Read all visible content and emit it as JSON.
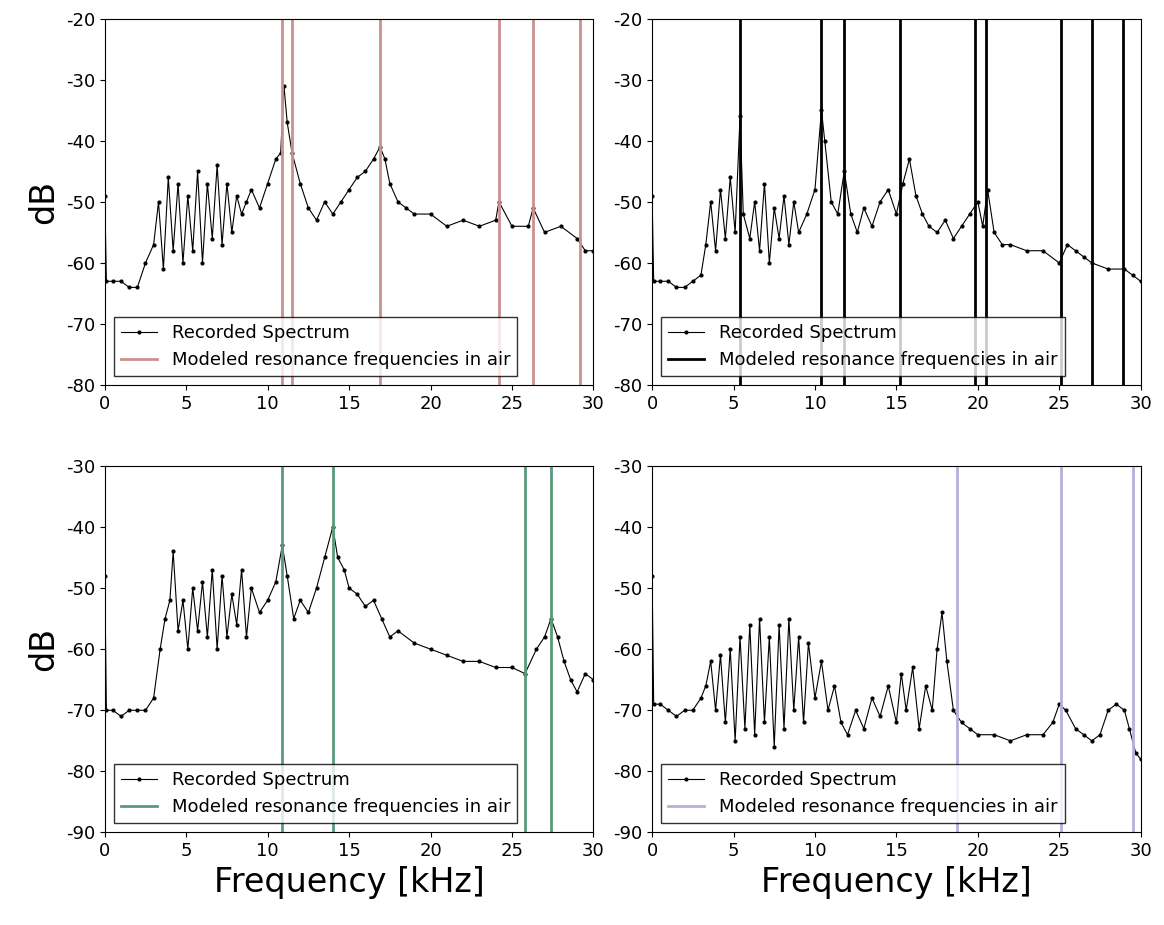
{
  "chart_data": [
    {
      "type": "line",
      "xlim": [
        0,
        30
      ],
      "xticks": [
        0,
        5,
        10,
        15,
        20,
        25,
        30
      ],
      "ylim": [
        -80,
        -20
      ],
      "yticks": [
        -80,
        -70,
        -60,
        -50,
        -40,
        -30,
        -20
      ],
      "y_label": "dB",
      "legend": "lower left",
      "series": [
        {
          "name": "Recorded Spectrum",
          "color": "#000000",
          "marker": "point",
          "line_style": "solid",
          "x": [
            0,
            0.1,
            0.5,
            1,
            1.5,
            2,
            2.5,
            3,
            3.3,
            3.6,
            3.9,
            4.2,
            4.5,
            4.8,
            5.1,
            5.4,
            5.7,
            6,
            6.3,
            6.6,
            6.9,
            7.2,
            7.5,
            7.8,
            8.1,
            8.4,
            8.7,
            9,
            9.5,
            10,
            10.5,
            10.8,
            11,
            11.2,
            11.5,
            12,
            12.5,
            13,
            13.5,
            14,
            14.5,
            15,
            15.5,
            16,
            16.5,
            16.9,
            17.2,
            17.5,
            18,
            18.5,
            19,
            20,
            21,
            22,
            23,
            24,
            24.2,
            25,
            26,
            26.3,
            27,
            28,
            29,
            29.5,
            30
          ],
          "values": [
            -49,
            -63,
            -63,
            -63,
            -64,
            -64,
            -60,
            -57,
            -50,
            -61,
            -46,
            -58,
            -47,
            -60,
            -49,
            -58,
            -45,
            -60,
            -47,
            -56,
            -44,
            -57,
            -47,
            -55,
            -49,
            -52,
            -50,
            -48,
            -51,
            -47,
            -43,
            -42,
            -31,
            -37,
            -42,
            -47,
            -51,
            -53,
            -50,
            -52,
            -50,
            -48,
            -46,
            -45,
            -43,
            -41,
            -43,
            -47,
            -50,
            -51,
            -52,
            -52,
            -54,
            -53,
            -54,
            -53,
            -50,
            -54,
            -54,
            -51,
            -55,
            -54,
            -56,
            -58,
            -58
          ]
        },
        {
          "name": "Modeled resonance frequencies in air",
          "type": "vline",
          "color": "#c9918f",
          "x": [
            10.9,
            11.5,
            16.9,
            24.2,
            26.3,
            29.2
          ]
        }
      ]
    },
    {
      "type": "line",
      "xlim": [
        0,
        30
      ],
      "xticks": [
        0,
        5,
        10,
        15,
        20,
        25,
        30
      ],
      "ylim": [
        -80,
        -20
      ],
      "yticks": [
        -80,
        -70,
        -60,
        -50,
        -40,
        -30,
        -20
      ],
      "legend": "lower left",
      "series": [
        {
          "name": "Recorded Spectrum",
          "color": "#000000",
          "marker": "point",
          "line_style": "solid",
          "x": [
            0,
            0.1,
            0.5,
            1,
            1.5,
            2,
            2.5,
            3,
            3.3,
            3.6,
            3.9,
            4.2,
            4.5,
            4.8,
            5.1,
            5.4,
            5.6,
            6,
            6.3,
            6.6,
            6.9,
            7.2,
            7.5,
            7.8,
            8.1,
            8.4,
            8.7,
            9,
            9.5,
            10,
            10.4,
            10.6,
            11,
            11.4,
            11.8,
            12.2,
            12.6,
            13,
            13.5,
            14,
            14.5,
            15,
            15.4,
            15.8,
            16.2,
            16.6,
            17,
            17.5,
            18,
            18.5,
            19,
            19.5,
            20,
            20.3,
            20.6,
            21,
            21.5,
            22,
            23,
            24,
            25,
            25.5,
            26,
            26.5,
            27,
            28,
            29,
            29.5,
            30
          ],
          "values": [
            -49,
            -63,
            -63,
            -63,
            -64,
            -64,
            -63,
            -62,
            -57,
            -50,
            -58,
            -48,
            -56,
            -46,
            -55,
            -36,
            -52,
            -56,
            -50,
            -58,
            -47,
            -60,
            -51,
            -56,
            -49,
            -57,
            -50,
            -55,
            -52,
            -48,
            -35,
            -40,
            -50,
            -52,
            -45,
            -52,
            -55,
            -51,
            -54,
            -50,
            -48,
            -52,
            -47,
            -43,
            -49,
            -52,
            -54,
            -55,
            -53,
            -56,
            -54,
            -52,
            -50,
            -54,
            -48,
            -55,
            -57,
            -57,
            -58,
            -58,
            -60,
            -57,
            -58,
            -59,
            -60,
            -61,
            -61,
            -62,
            -63
          ]
        },
        {
          "name": "Modeled resonance frequencies in air",
          "type": "vline",
          "color": "#000000",
          "x": [
            5.4,
            10.4,
            11.8,
            15.2,
            19.8,
            20.5,
            25.1,
            27.0,
            28.9
          ]
        }
      ]
    },
    {
      "type": "line",
      "xlim": [
        0,
        30
      ],
      "xticks": [
        0,
        5,
        10,
        15,
        20,
        25,
        30
      ],
      "ylim": [
        -90,
        -30
      ],
      "yticks": [
        -90,
        -80,
        -70,
        -60,
        -50,
        -40,
        -30
      ],
      "y_label": "dB",
      "x_label": "Frequency [kHz]",
      "legend": "lower left",
      "series": [
        {
          "name": "Recorded Spectrum",
          "color": "#000000",
          "marker": "point",
          "line_style": "solid",
          "x": [
            0,
            0.1,
            0.5,
            1,
            1.5,
            2,
            2.5,
            3,
            3.4,
            3.7,
            4,
            4.2,
            4.5,
            4.8,
            5.1,
            5.4,
            5.7,
            6,
            6.3,
            6.6,
            6.9,
            7.2,
            7.5,
            7.8,
            8.1,
            8.4,
            8.7,
            9,
            9.5,
            10,
            10.5,
            10.9,
            11.2,
            11.6,
            12,
            12.5,
            13,
            13.5,
            14,
            14.3,
            14.7,
            15,
            15.5,
            16,
            16.5,
            17,
            17.5,
            18,
            19,
            20,
            21,
            22,
            23,
            24,
            25,
            25.8,
            26.5,
            27,
            27.4,
            27.8,
            28.2,
            28.6,
            29,
            29.5,
            30
          ],
          "values": [
            -48,
            -70,
            -70,
            -71,
            -70,
            -70,
            -70,
            -68,
            -60,
            -55,
            -52,
            -44,
            -57,
            -52,
            -60,
            -50,
            -57,
            -49,
            -58,
            -47,
            -60,
            -48,
            -58,
            -51,
            -56,
            -47,
            -58,
            -50,
            -54,
            -52,
            -49,
            -43,
            -48,
            -55,
            -52,
            -54,
            -50,
            -45,
            -40,
            -45,
            -47,
            -50,
            -51,
            -53,
            -52,
            -55,
            -58,
            -57,
            -59,
            -60,
            -61,
            -62,
            -62,
            -63,
            -63,
            -64,
            -60,
            -58,
            -55,
            -58,
            -62,
            -65,
            -67,
            -64,
            -65
          ]
        },
        {
          "name": "Modeled resonance frequencies in air",
          "type": "vline",
          "color": "#5a9a7c",
          "x": [
            10.9,
            14.0,
            25.8,
            27.4
          ]
        }
      ]
    },
    {
      "type": "line",
      "xlim": [
        0,
        30
      ],
      "xticks": [
        0,
        5,
        10,
        15,
        20,
        25,
        30
      ],
      "ylim": [
        -90,
        -30
      ],
      "yticks": [
        -90,
        -80,
        -70,
        -60,
        -50,
        -40,
        -30
      ],
      "x_label": "Frequency [kHz]",
      "legend": "lower left",
      "series": [
        {
          "name": "Recorded Spectrum",
          "color": "#000000",
          "marker": "point",
          "line_style": "solid",
          "x": [
            0,
            0.1,
            0.5,
            1,
            1.5,
            2,
            2.5,
            3,
            3.3,
            3.6,
            3.9,
            4.2,
            4.5,
            4.8,
            5.1,
            5.4,
            5.7,
            6,
            6.3,
            6.6,
            6.9,
            7.2,
            7.5,
            7.8,
            8.1,
            8.4,
            8.7,
            9,
            9.3,
            9.6,
            10,
            10.4,
            10.8,
            11.2,
            11.6,
            12,
            12.5,
            13,
            13.5,
            14,
            14.5,
            15,
            15.3,
            15.6,
            16,
            16.4,
            16.8,
            17.2,
            17.5,
            17.8,
            18.1,
            18.5,
            19,
            19.5,
            20,
            21,
            22,
            23,
            24,
            24.6,
            25,
            25.4,
            26,
            26.5,
            27,
            27.5,
            28,
            28.5,
            29,
            29.3,
            29.7,
            30
          ],
          "values": [
            -48,
            -69,
            -69,
            -70,
            -71,
            -70,
            -70,
            -68,
            -66,
            -62,
            -70,
            -61,
            -72,
            -60,
            -75,
            -58,
            -73,
            -56,
            -74,
            -55,
            -72,
            -58,
            -76,
            -56,
            -73,
            -55,
            -70,
            -58,
            -72,
            -59,
            -68,
            -62,
            -70,
            -66,
            -72,
            -74,
            -70,
            -73,
            -68,
            -71,
            -66,
            -72,
            -64,
            -70,
            -63,
            -73,
            -66,
            -70,
            -60,
            -54,
            -62,
            -70,
            -72,
            -73,
            -74,
            -74,
            -75,
            -74,
            -74,
            -72,
            -69,
            -70,
            -73,
            -74,
            -75,
            -74,
            -70,
            -69,
            -70,
            -73,
            -77,
            -78
          ]
        },
        {
          "name": "Modeled resonance frequencies in air",
          "type": "vline",
          "color": "#b4b0dc",
          "x": [
            18.7,
            25.1,
            29.5
          ]
        }
      ]
    }
  ]
}
